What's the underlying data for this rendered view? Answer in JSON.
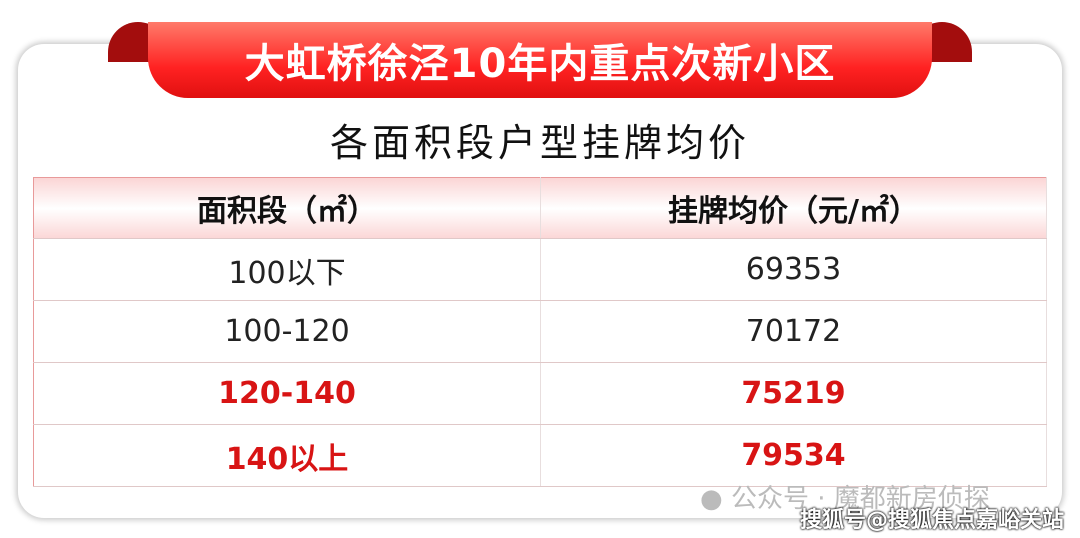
{
  "banner_title": "大虹桥徐泾10年内重点次新小区",
  "subtitle": "各面积段户型挂牌均价",
  "table": {
    "headers": [
      "面积段（㎡）",
      "挂牌均价（元/㎡）"
    ],
    "rows": [
      {
        "area": "100以下",
        "price": "69353",
        "highlight": false
      },
      {
        "area": "100-120",
        "price": "70172",
        "highlight": false
      },
      {
        "area": "120-140",
        "price": "75219",
        "highlight": true
      },
      {
        "area": "140以上",
        "price": "79534",
        "highlight": true
      }
    ]
  },
  "watermark_wechat": "公众号 · 魔都新房侦探",
  "watermark_sohu": "搜狐号@搜狐焦点嘉峪关站",
  "colors": {
    "accent": "#e01010",
    "highlight_text": "#d81414"
  }
}
